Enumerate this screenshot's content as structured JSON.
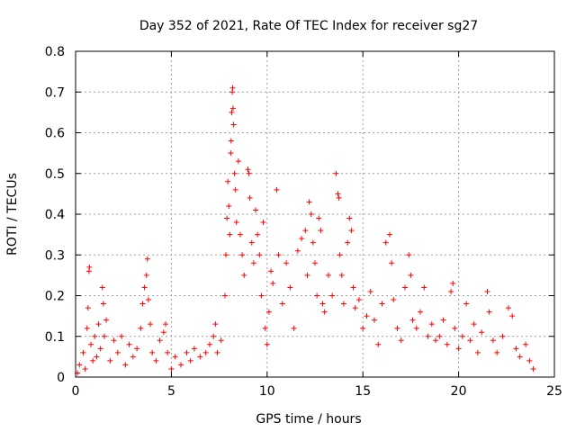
{
  "chart_data": {
    "type": "scatter",
    "title": "Day 352 of 2021, Rate Of TEC Index for receiver sg27",
    "xlabel": "GPS time / hours",
    "ylabel": "ROTI / TECUs",
    "xlim": [
      0,
      25
    ],
    "ylim": [
      0,
      0.8
    ],
    "xticks": [
      0,
      5,
      10,
      15,
      20,
      25
    ],
    "xtick_labels": [
      "0",
      "5",
      "10",
      "15",
      "20",
      "25"
    ],
    "yticks": [
      0,
      0.1,
      0.2,
      0.3,
      0.4,
      0.5,
      0.6,
      0.7,
      0.8
    ],
    "ytick_labels": [
      "0",
      "0.1",
      "0.2",
      "0.3",
      "0.4",
      "0.5",
      "0.6",
      "0.7",
      "0.8"
    ],
    "grid": true,
    "marker": "plus",
    "color": "#ff0000",
    "series": [
      {
        "name": "ROTI",
        "points": [
          [
            0.1,
            0.01
          ],
          [
            0.2,
            0.03
          ],
          [
            0.4,
            0.06
          ],
          [
            0.5,
            0.02
          ],
          [
            0.6,
            0.12
          ],
          [
            0.65,
            0.17
          ],
          [
            0.7,
            0.26
          ],
          [
            0.72,
            0.27
          ],
          [
            0.8,
            0.08
          ],
          [
            0.9,
            0.04
          ],
          [
            1.0,
            0.1
          ],
          [
            1.1,
            0.05
          ],
          [
            1.2,
            0.13
          ],
          [
            1.3,
            0.07
          ],
          [
            1.4,
            0.22
          ],
          [
            1.45,
            0.18
          ],
          [
            1.5,
            0.1
          ],
          [
            1.6,
            0.14
          ],
          [
            1.8,
            0.04
          ],
          [
            2.0,
            0.09
          ],
          [
            2.2,
            0.06
          ],
          [
            2.4,
            0.1
          ],
          [
            2.6,
            0.03
          ],
          [
            2.8,
            0.08
          ],
          [
            3.0,
            0.05
          ],
          [
            3.2,
            0.07
          ],
          [
            3.4,
            0.12
          ],
          [
            3.5,
            0.18
          ],
          [
            3.6,
            0.22
          ],
          [
            3.7,
            0.25
          ],
          [
            3.75,
            0.29
          ],
          [
            3.8,
            0.19
          ],
          [
            3.9,
            0.13
          ],
          [
            4.0,
            0.06
          ],
          [
            4.2,
            0.04
          ],
          [
            4.4,
            0.09
          ],
          [
            4.6,
            0.11
          ],
          [
            4.7,
            0.13
          ],
          [
            4.8,
            0.06
          ],
          [
            5.0,
            0.02
          ],
          [
            5.2,
            0.05
          ],
          [
            5.5,
            0.03
          ],
          [
            5.8,
            0.06
          ],
          [
            6.0,
            0.04
          ],
          [
            6.2,
            0.07
          ],
          [
            6.5,
            0.05
          ],
          [
            6.8,
            0.06
          ],
          [
            7.0,
            0.08
          ],
          [
            7.2,
            0.1
          ],
          [
            7.3,
            0.13
          ],
          [
            7.4,
            0.06
          ],
          [
            7.6,
            0.09
          ],
          [
            7.8,
            0.2
          ],
          [
            7.85,
            0.3
          ],
          [
            7.9,
            0.39
          ],
          [
            7.95,
            0.48
          ],
          [
            8.0,
            0.42
          ],
          [
            8.05,
            0.35
          ],
          [
            8.1,
            0.55
          ],
          [
            8.12,
            0.58
          ],
          [
            8.15,
            0.65
          ],
          [
            8.18,
            0.7
          ],
          [
            8.2,
            0.71
          ],
          [
            8.22,
            0.66
          ],
          [
            8.25,
            0.62
          ],
          [
            8.3,
            0.5
          ],
          [
            8.35,
            0.46
          ],
          [
            8.4,
            0.38
          ],
          [
            8.5,
            0.53
          ],
          [
            8.6,
            0.35
          ],
          [
            8.7,
            0.3
          ],
          [
            8.8,
            0.25
          ],
          [
            9.0,
            0.51
          ],
          [
            9.05,
            0.5
          ],
          [
            9.1,
            0.44
          ],
          [
            9.2,
            0.33
          ],
          [
            9.3,
            0.28
          ],
          [
            9.4,
            0.41
          ],
          [
            9.5,
            0.35
          ],
          [
            9.6,
            0.3
          ],
          [
            9.7,
            0.2
          ],
          [
            9.8,
            0.38
          ],
          [
            9.9,
            0.12
          ],
          [
            10.0,
            0.08
          ],
          [
            10.1,
            0.16
          ],
          [
            10.2,
            0.26
          ],
          [
            10.3,
            0.23
          ],
          [
            10.5,
            0.46
          ],
          [
            10.6,
            0.3
          ],
          [
            10.8,
            0.18
          ],
          [
            11.0,
            0.28
          ],
          [
            11.2,
            0.22
          ],
          [
            11.4,
            0.12
          ],
          [
            11.6,
            0.31
          ],
          [
            11.8,
            0.34
          ],
          [
            12.0,
            0.36
          ],
          [
            12.1,
            0.25
          ],
          [
            12.2,
            0.43
          ],
          [
            12.3,
            0.4
          ],
          [
            12.4,
            0.33
          ],
          [
            12.5,
            0.28
          ],
          [
            12.6,
            0.2
          ],
          [
            12.7,
            0.39
          ],
          [
            12.8,
            0.36
          ],
          [
            12.9,
            0.18
          ],
          [
            13.0,
            0.16
          ],
          [
            13.2,
            0.25
          ],
          [
            13.4,
            0.2
          ],
          [
            13.6,
            0.5
          ],
          [
            13.7,
            0.45
          ],
          [
            13.75,
            0.44
          ],
          [
            13.8,
            0.3
          ],
          [
            13.9,
            0.25
          ],
          [
            14.0,
            0.18
          ],
          [
            14.2,
            0.33
          ],
          [
            14.3,
            0.39
          ],
          [
            14.4,
            0.36
          ],
          [
            14.5,
            0.22
          ],
          [
            14.6,
            0.17
          ],
          [
            14.8,
            0.19
          ],
          [
            15.0,
            0.12
          ],
          [
            15.2,
            0.15
          ],
          [
            15.4,
            0.21
          ],
          [
            15.6,
            0.14
          ],
          [
            15.8,
            0.08
          ],
          [
            16.0,
            0.18
          ],
          [
            16.2,
            0.33
          ],
          [
            16.4,
            0.35
          ],
          [
            16.5,
            0.28
          ],
          [
            16.6,
            0.19
          ],
          [
            16.8,
            0.12
          ],
          [
            17.0,
            0.09
          ],
          [
            17.2,
            0.22
          ],
          [
            17.4,
            0.3
          ],
          [
            17.5,
            0.25
          ],
          [
            17.6,
            0.14
          ],
          [
            17.8,
            0.12
          ],
          [
            18.0,
            0.16
          ],
          [
            18.2,
            0.22
          ],
          [
            18.4,
            0.1
          ],
          [
            18.6,
            0.13
          ],
          [
            18.8,
            0.09
          ],
          [
            19.0,
            0.1
          ],
          [
            19.2,
            0.14
          ],
          [
            19.4,
            0.08
          ],
          [
            19.6,
            0.21
          ],
          [
            19.7,
            0.23
          ],
          [
            19.8,
            0.12
          ],
          [
            20.0,
            0.07
          ],
          [
            20.2,
            0.1
          ],
          [
            20.4,
            0.18
          ],
          [
            20.6,
            0.09
          ],
          [
            20.8,
            0.13
          ],
          [
            21.0,
            0.06
          ],
          [
            21.2,
            0.11
          ],
          [
            21.5,
            0.21
          ],
          [
            21.6,
            0.16
          ],
          [
            21.8,
            0.09
          ],
          [
            22.0,
            0.06
          ],
          [
            22.3,
            0.1
          ],
          [
            22.6,
            0.17
          ],
          [
            22.8,
            0.15
          ],
          [
            23.0,
            0.07
          ],
          [
            23.2,
            0.05
          ],
          [
            23.5,
            0.08
          ],
          [
            23.7,
            0.04
          ],
          [
            23.9,
            0.02
          ]
        ]
      }
    ]
  }
}
